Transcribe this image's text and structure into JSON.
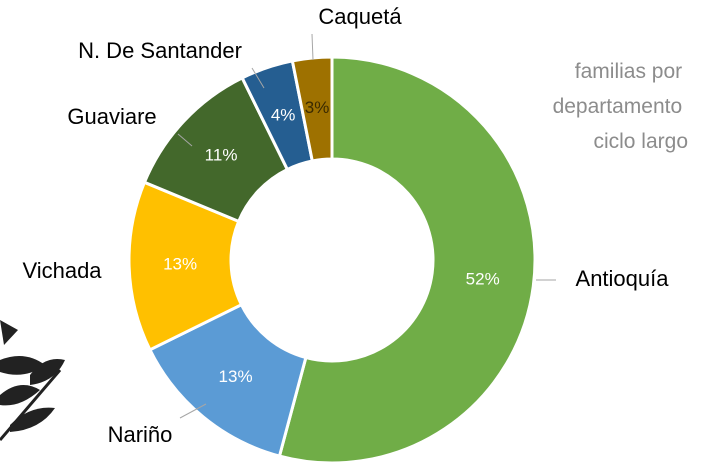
{
  "chart_data": {
    "type": "donut",
    "title": "familias por departamento ciclo largo",
    "categories": [
      "Antioquía",
      "Nariño",
      "Vichada",
      "Guaviare",
      "N. De Santander",
      "Caquetá"
    ],
    "values": [
      52,
      13,
      13,
      11,
      4,
      3
    ],
    "value_labels": [
      "52%",
      "13%",
      "13%",
      "11%",
      "4%",
      "3%"
    ],
    "colors": [
      "#70ad47",
      "#5b9bd5",
      "#ffc000",
      "#43682b",
      "#255e91",
      "#9e7100"
    ]
  }
}
